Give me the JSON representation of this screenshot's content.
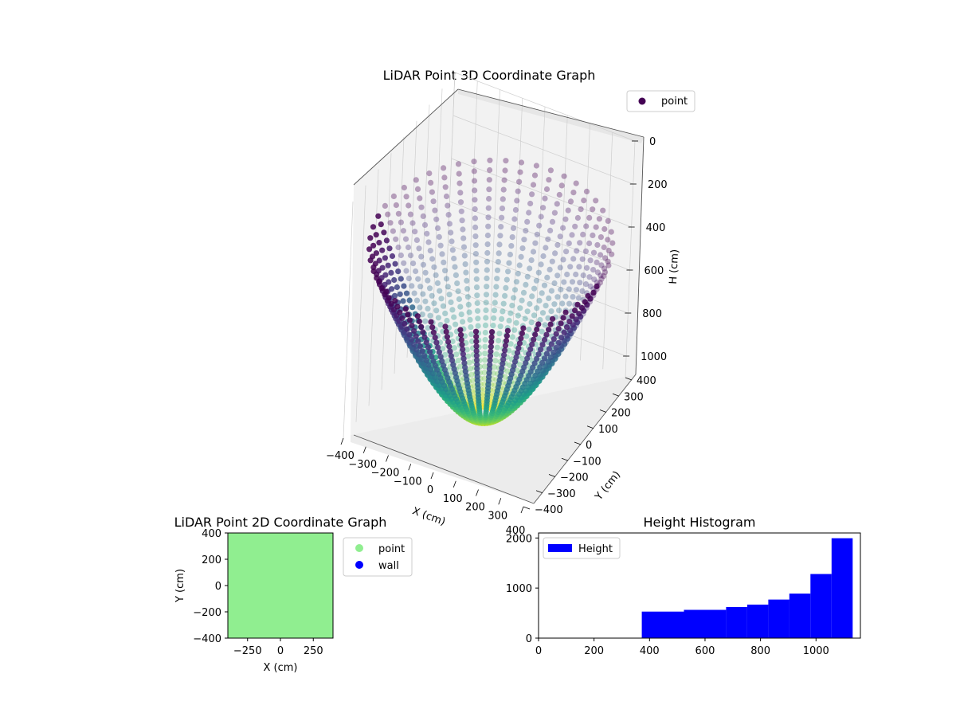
{
  "chart_data": [
    {
      "type": "scatter",
      "projection": "3d",
      "title": "LiDAR Point 3D Coordinate Graph",
      "xlabel": "X (cm)",
      "ylabel": "Y (cm)",
      "zlabel": "H (cm)",
      "xlim": [
        -400,
        400
      ],
      "ylim": [
        -400,
        400
      ],
      "zlim": [
        1100,
        0
      ],
      "x_ticks": [
        "−400",
        "−300",
        "−200",
        "−100",
        "0",
        "100",
        "200",
        "300",
        "400"
      ],
      "y_ticks": [
        "−400",
        "−300",
        "−200",
        "−100",
        "0",
        "100",
        "200",
        "300",
        "400"
      ],
      "z_ticks": [
        "0",
        "200",
        "400",
        "600",
        "800",
        "1000"
      ],
      "z_axis_inverted": true,
      "colormap": "viridis",
      "grid": true,
      "legend": {
        "placement": "top-right",
        "entries": [
          {
            "label": "point",
            "color": "#440154"
          }
        ]
      },
      "series": [
        {
          "name": "point",
          "description": "radial scan lines forming a bowl; height = distance field",
          "h_min": 370,
          "h_max": 1130,
          "rays": 48,
          "samples_per_ray": 34
        }
      ]
    },
    {
      "type": "scatter",
      "title": "LiDAR Point 2D Coordinate Graph",
      "xlabel": "X (cm)",
      "ylabel": "Y (cm)",
      "xlim": [
        -400,
        400
      ],
      "ylim": [
        -400,
        400
      ],
      "x_ticks": [
        "−250",
        "0",
        "250"
      ],
      "y_ticks": [
        "400",
        "200",
        "0",
        "−200",
        "−400"
      ],
      "fill_color": "#90ee90",
      "legend": {
        "placement": "outside-right",
        "entries": [
          {
            "label": "point",
            "color": "#90ee90"
          },
          {
            "label": "wall",
            "color": "#0000ff"
          }
        ]
      }
    },
    {
      "type": "bar",
      "subtype": "histogram",
      "title": "Height Histogram",
      "xlim": [
        0,
        1160
      ],
      "ylim": [
        0,
        2100
      ],
      "x_ticks": [
        "0",
        "200",
        "400",
        "600",
        "800",
        "1000"
      ],
      "y_ticks": [
        "0",
        "1000",
        "2000"
      ],
      "bar_color": "#0000ff",
      "legend": {
        "placement": "top-left",
        "entries": [
          {
            "label": "Height",
            "color": "#0000ff"
          }
        ]
      },
      "bins": [
        {
          "x0": 372,
          "x1": 524,
          "value": 530
        },
        {
          "x0": 524,
          "x1": 676,
          "value": 565
        },
        {
          "x0": 676,
          "x1": 752,
          "value": 620
        },
        {
          "x0": 752,
          "x1": 828,
          "value": 670
        },
        {
          "x0": 828,
          "x1": 904,
          "value": 770
        },
        {
          "x0": 904,
          "x1": 980,
          "value": 890
        },
        {
          "x0": 980,
          "x1": 1056,
          "value": 1280
        },
        {
          "x0": 1056,
          "x1": 1132,
          "value": 1995
        }
      ]
    }
  ]
}
